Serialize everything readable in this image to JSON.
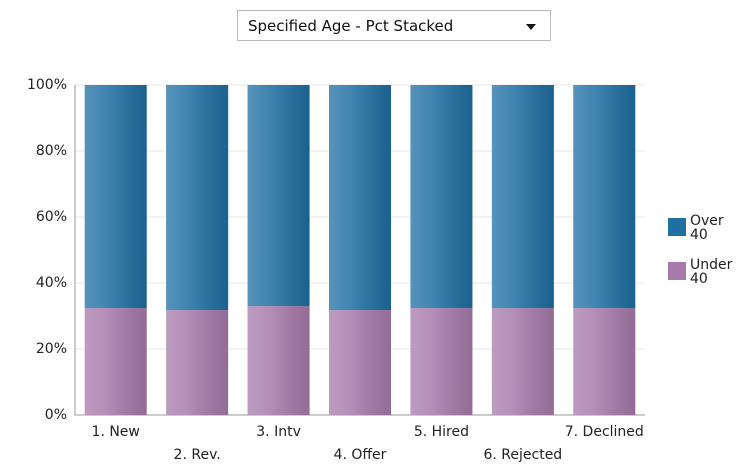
{
  "dropdown_label": "Specified Age - Pct Stacked",
  "chart_data": {
    "type": "stacked_bar",
    "categories": [
      "1. New",
      "2. Rev.",
      "3. Intv",
      "4. Offer",
      "5. Hired",
      "6. Rejected",
      "7. Declined"
    ],
    "series": [
      {
        "name": "Over 40",
        "color": "#1f6fa3",
        "values": [
          67.6,
          68.2,
          67,
          68.2,
          67.6,
          67.6,
          67.6
        ]
      },
      {
        "name": "Under 40",
        "color": "#a77aab",
        "values": [
          32.4,
          31.8,
          33,
          31.8,
          32.4,
          32.4,
          32.4
        ]
      }
    ],
    "ylim": [
      0,
      100
    ],
    "yticks": [
      {
        "value": 0,
        "label": "0%"
      },
      {
        "value": 20,
        "label": "20%"
      },
      {
        "value": 40,
        "label": "40%"
      },
      {
        "value": 60,
        "label": "60%"
      },
      {
        "value": 80,
        "label": "80%"
      },
      {
        "value": 100,
        "label": "100%"
      }
    ],
    "grid": true,
    "legend": "right"
  }
}
